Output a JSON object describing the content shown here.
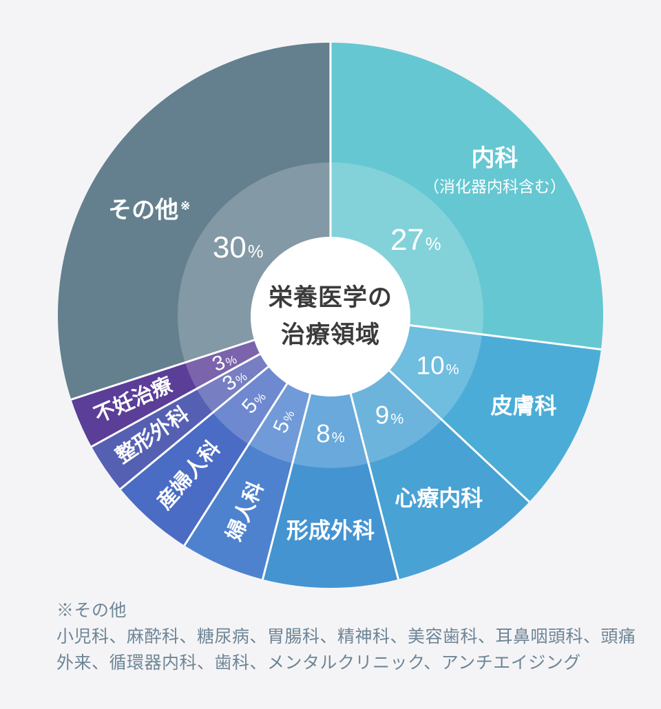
{
  "background": "#f4f4f6",
  "chart_data": {
    "type": "pie",
    "title": "栄養医学の治療領域",
    "title_lines": [
      "栄養医学の",
      "治療領域"
    ],
    "start_angle_deg": 0,
    "direction": "clockwise",
    "center_hole": true,
    "percent_suffix": "%",
    "inner_ring_overlay": "rgba(255,255,255,0.2)",
    "separator_color": "#ffffff",
    "slices": [
      {
        "key": "internal-medicine",
        "label": "内科",
        "sublabel": "（消化器内科含む）",
        "pct": 27,
        "color": "#65c7d1",
        "label_style": "horizontal"
      },
      {
        "key": "dermatology",
        "label": "皮膚科",
        "pct": 10,
        "color": "#4badd7",
        "label_style": "horizontal"
      },
      {
        "key": "psychosomatic-medicine",
        "label": "心療内科",
        "pct": 9,
        "color": "#49a2d4",
        "label_style": "horizontal"
      },
      {
        "key": "plastic-surgery",
        "label": "形成外科",
        "pct": 8,
        "color": "#4494d2",
        "label_style": "horizontal"
      },
      {
        "key": "gynecology",
        "label": "婦人科",
        "pct": 5,
        "color": "#4e82cf",
        "label_style": "radial"
      },
      {
        "key": "obstetrics-gynecology",
        "label": "産婦人科",
        "pct": 5,
        "color": "#4a6cc4",
        "label_style": "radial"
      },
      {
        "key": "orthopedic-surgery",
        "label": "整形外科",
        "pct": 3,
        "color": "#5560b3",
        "label_style": "radial"
      },
      {
        "key": "infertility-treatment",
        "label": "不妊治療",
        "pct": 3,
        "color": "#5b3e97",
        "label_style": "radial"
      },
      {
        "key": "others",
        "label": "その他",
        "marker": "※",
        "pct": 30,
        "color": "#64808f",
        "label_style": "horizontal"
      }
    ]
  },
  "note": {
    "lines": [
      "※その他",
      "小児科、麻酔科、糖尿病、胃腸科、精神科、美容歯科、耳鼻咽頭科、頭痛",
      "外来、循環器内科、歯科、メンタルクリニック、アンチエイジング"
    ]
  }
}
